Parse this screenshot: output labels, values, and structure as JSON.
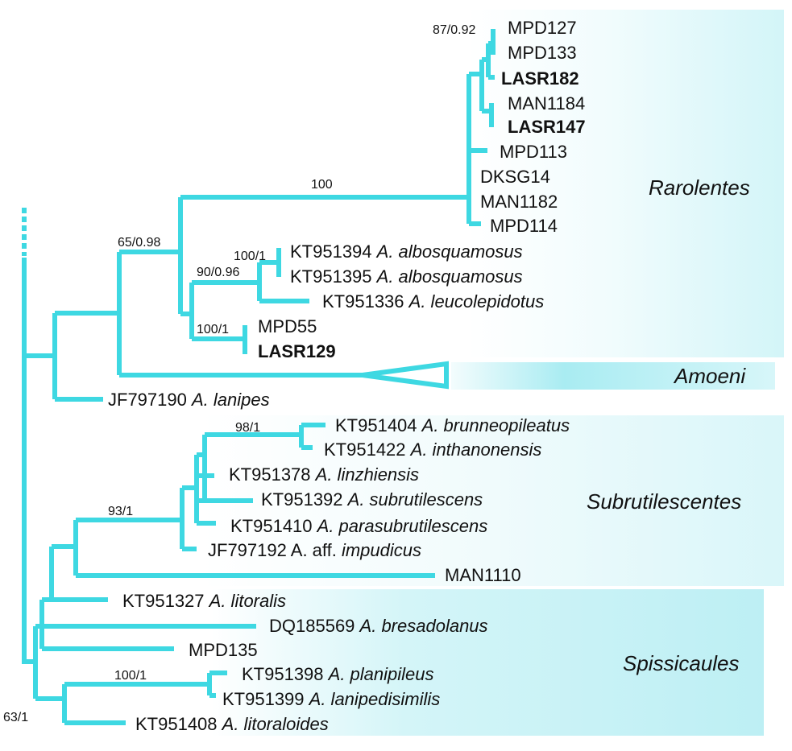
{
  "colors": {
    "branch": "#3ed8e2",
    "shade_light": "#e9fbfd",
    "shade_mid": "#c6f2f6",
    "shade_strong": "#a4ebf1"
  },
  "clades": {
    "rarolentes": "Rarolentes",
    "amoeni": "Amoeni",
    "subrutilescentes": "Subrutilescentes",
    "spissicaules": "Spissicaules"
  },
  "support": {
    "s1": "87/0.92",
    "s2": "100",
    "s3": "65/0.98",
    "s4": "100/1",
    "s5": "90/0.96",
    "s6": "100/1",
    "s7": "98/1",
    "s8": "93/1",
    "s9": "100/1",
    "s10": "63/1"
  },
  "tips": {
    "mpd127": "MPD127",
    "mpd133": "MPD133",
    "lasr182": "LASR182",
    "man1184": "MAN1184",
    "lasr147": "LASR147",
    "mpd113": "MPD113",
    "dksg14": "DKSG14",
    "man1182": "MAN1182",
    "mpd114": "MPD114",
    "kt394": {
      "acc": "KT951394",
      "sp": "A. albosquamosus"
    },
    "kt395": {
      "acc": "KT951395",
      "sp": "A. albosquamosus"
    },
    "kt336": {
      "acc": "KT951336",
      "sp": "A. leucolepidotus"
    },
    "mpd55": "MPD55",
    "lasr129": "LASR129",
    "jf190": {
      "acc": "JF797190",
      "sp": "A. lanipes"
    },
    "kt404": {
      "acc": "KT951404",
      "sp": "A. brunneopileatus"
    },
    "kt422": {
      "acc": "KT951422",
      "sp": "A. inthanonensis"
    },
    "kt378": {
      "acc": "KT951378",
      "sp": "A. linzhiensis"
    },
    "kt392": {
      "acc": "KT951392",
      "sp": "A. subrutilescens"
    },
    "kt410": {
      "acc": "KT951410",
      "sp": "A. parasubrutilescens"
    },
    "jf192": {
      "acc": "JF797192",
      "pre": "A. aff.",
      "sp": "impudicus"
    },
    "man1110": "MAN1110",
    "kt327": {
      "acc": "KT951327",
      "sp": "A. litoralis"
    },
    "dq569": {
      "acc": "DQ185569",
      "sp": "A. bresadolanus"
    },
    "mpd135": "MPD135",
    "kt398": {
      "acc": "KT951398",
      "sp": "A. planipileus"
    },
    "kt399": {
      "acc": "KT951399",
      "sp": "A. lanipedisimilis"
    },
    "kt408": {
      "acc": "KT951408",
      "sp": "A. litoraloides"
    }
  }
}
